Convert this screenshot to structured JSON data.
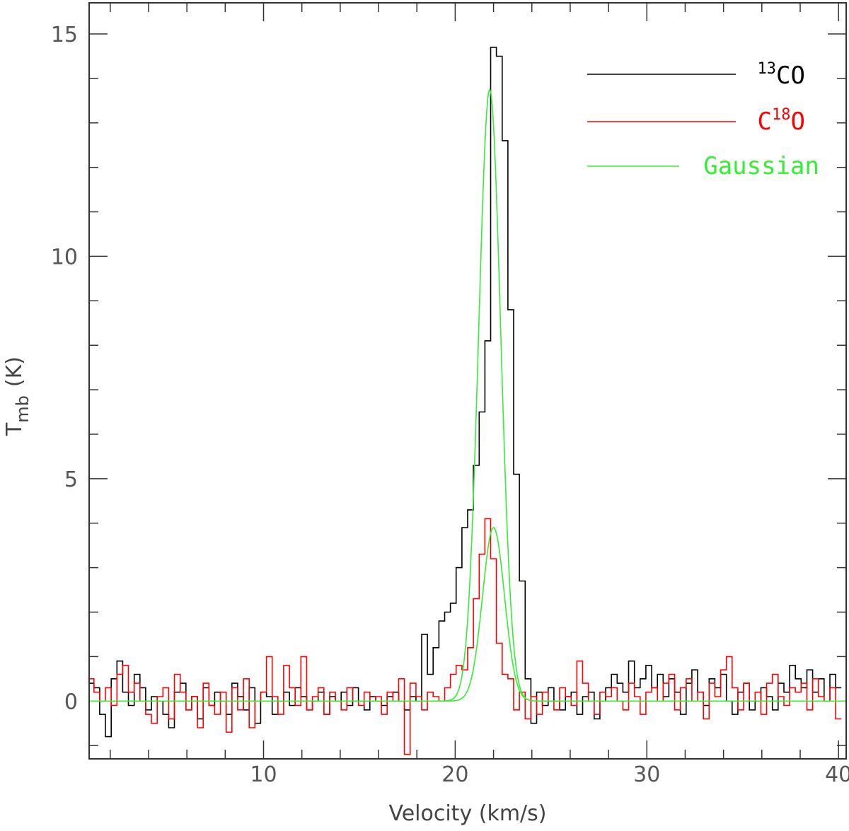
{
  "chart_data": {
    "type": "line",
    "xlabel": "Velocity (km/s)",
    "ylabel_main": "T",
    "ylabel_sub": "mb",
    "ylabel_unit": "(K)",
    "xlim": [
      0.9,
      40.4
    ],
    "ylim": [
      -1.3,
      15.7
    ],
    "xticks": [
      10,
      20,
      30,
      40
    ],
    "yticks": [
      0,
      5,
      10,
      15
    ],
    "legend_position": "top-right",
    "series": [
      {
        "name": "13CO",
        "legend_sup": "13",
        "legend_base": "CO",
        "color": "#000000",
        "kind": "step",
        "x": [
          1.0,
          1.3,
          1.6,
          1.9,
          2.2,
          2.5,
          2.8,
          3.1,
          3.4,
          3.7,
          4.0,
          4.3,
          4.6,
          4.9,
          5.2,
          5.5,
          5.8,
          6.1,
          6.4,
          6.7,
          7.0,
          7.3,
          7.6,
          7.9,
          8.2,
          8.5,
          8.8,
          9.1,
          9.4,
          9.7,
          10.0,
          10.3,
          10.6,
          10.9,
          11.2,
          11.5,
          11.8,
          12.1,
          12.4,
          12.7,
          13.0,
          13.3,
          13.6,
          13.9,
          14.2,
          14.5,
          14.8,
          15.1,
          15.4,
          15.7,
          16.0,
          16.3,
          16.6,
          16.9,
          17.2,
          17.5,
          17.8,
          18.1,
          18.4,
          18.7,
          19.0,
          19.3,
          19.6,
          19.9,
          20.2,
          20.5,
          20.8,
          21.1,
          21.4,
          21.7,
          22.0,
          22.3,
          22.6,
          22.9,
          23.2,
          23.5,
          23.8,
          24.1,
          24.4,
          24.7,
          25.0,
          25.3,
          25.6,
          25.9,
          26.2,
          26.5,
          26.8,
          27.1,
          27.4,
          27.7,
          28.0,
          28.3,
          28.6,
          28.9,
          29.2,
          29.5,
          29.8,
          30.1,
          30.4,
          30.7,
          31.0,
          31.3,
          31.6,
          31.9,
          32.2,
          32.5,
          32.8,
          33.1,
          33.4,
          33.7,
          34.0,
          34.3,
          34.6,
          34.9,
          35.2,
          35.5,
          35.8,
          36.1,
          36.4,
          36.7,
          37.0,
          37.3,
          37.6,
          37.9,
          38.2,
          38.5,
          38.8,
          39.1,
          39.4,
          39.7,
          40.0
        ],
        "y": [
          0.4,
          0.3,
          -0.3,
          -0.8,
          0.5,
          0.9,
          0.2,
          -0.1,
          0.6,
          0.3,
          -0.2,
          0.1,
          0.0,
          -0.3,
          -0.6,
          0.2,
          0.4,
          -0.2,
          0.1,
          -0.4,
          0.3,
          -0.1,
          0.2,
          0.0,
          -0.3,
          0.4,
          0.1,
          -0.2,
          0.3,
          -0.5,
          0.2,
          0.1,
          -0.3,
          0.0,
          0.2,
          -0.1,
          0.3,
          0.1,
          -0.2,
          0.0,
          0.2,
          -0.3,
          0.1,
          0.0,
          0.2,
          -0.1,
          0.3,
          0.0,
          -0.2,
          0.1,
          0.0,
          -0.1,
          0.1,
          0.2,
          0.0,
          -0.2,
          0.1,
          0.0,
          1.5,
          0.6,
          1.2,
          1.8,
          2.0,
          2.2,
          3.0,
          3.9,
          4.3,
          5.3,
          6.5,
          8.1,
          14.7,
          14.5,
          12.6,
          8.8,
          5.1,
          2.7,
          0.5,
          -0.5,
          0.2,
          -0.1,
          0.3,
          0.0,
          -0.2,
          0.1,
          0.2,
          -0.3,
          0.1,
          0.2,
          -0.4,
          0.0,
          0.3,
          0.6,
          0.4,
          0.2,
          0.9,
          0.3,
          0.5,
          0.8,
          0.3,
          0.6,
          0.1,
          0.5,
          0.2,
          -0.3,
          0.4,
          0.7,
          0.2,
          -0.1,
          0.5,
          0.3,
          0.6,
          0.0,
          -0.3,
          0.2,
          0.4,
          -0.2,
          0.0,
          0.3,
          0.1,
          -0.2,
          0.4,
          0.2,
          0.8,
          0.5,
          0.3,
          0.7,
          0.2,
          0.5,
          0.0,
          0.6,
          0.3
        ]
      },
      {
        "name": "C18O",
        "legend_sup": "18",
        "legend_base_pre": "C",
        "legend_base_post": "O",
        "color": "#ff0000",
        "kind": "step",
        "x": [
          1.0,
          1.3,
          1.6,
          1.9,
          2.2,
          2.5,
          2.8,
          3.1,
          3.4,
          3.7,
          4.0,
          4.3,
          4.6,
          4.9,
          5.2,
          5.5,
          5.8,
          6.1,
          6.4,
          6.7,
          7.0,
          7.3,
          7.6,
          7.9,
          8.2,
          8.5,
          8.8,
          9.1,
          9.4,
          9.7,
          10.0,
          10.3,
          10.6,
          10.9,
          11.2,
          11.5,
          11.8,
          12.1,
          12.4,
          12.7,
          13.0,
          13.3,
          13.6,
          13.9,
          14.2,
          14.5,
          14.8,
          15.1,
          15.4,
          15.7,
          16.0,
          16.3,
          16.6,
          16.9,
          17.2,
          17.5,
          17.8,
          18.1,
          18.4,
          18.7,
          19.0,
          19.3,
          19.6,
          19.9,
          20.2,
          20.5,
          20.8,
          21.1,
          21.4,
          21.7,
          22.0,
          22.3,
          22.6,
          22.9,
          23.2,
          23.5,
          23.8,
          24.1,
          24.4,
          24.7,
          25.0,
          25.3,
          25.6,
          25.9,
          26.2,
          26.5,
          26.8,
          27.1,
          27.4,
          27.7,
          28.0,
          28.3,
          28.6,
          28.9,
          29.2,
          29.5,
          29.8,
          30.1,
          30.4,
          30.7,
          31.0,
          31.3,
          31.6,
          31.9,
          32.2,
          32.5,
          32.8,
          33.1,
          33.4,
          33.7,
          34.0,
          34.3,
          34.6,
          34.9,
          35.2,
          35.5,
          35.8,
          36.1,
          36.4,
          36.7,
          37.0,
          37.3,
          37.6,
          37.9,
          38.2,
          38.5,
          38.8,
          39.1,
          39.4,
          39.7,
          40.0
        ],
        "y": [
          0.5,
          0.2,
          0.0,
          0.3,
          -0.1,
          0.6,
          0.8,
          0.2,
          0.4,
          0.0,
          -0.3,
          -0.5,
          0.1,
          0.3,
          -0.4,
          0.6,
          0.2,
          -0.2,
          0.1,
          -0.6,
          0.4,
          -0.1,
          -0.3,
          0.2,
          -0.7,
          0.3,
          -0.2,
          0.5,
          -0.6,
          0.0,
          0.2,
          1.0,
          0.1,
          -0.3,
          0.8,
          0.3,
          -0.1,
          1.0,
          -0.2,
          0.1,
          0.3,
          -0.3,
          0.2,
          0.0,
          -0.2,
          0.3,
          0.0,
          -0.1,
          0.2,
          0.0,
          0.1,
          -0.3,
          0.2,
          0.0,
          0.5,
          -1.2,
          0.4,
          0.1,
          -0.2,
          0.2,
          0.1,
          0.0,
          0.3,
          0.6,
          0.8,
          0.7,
          1.2,
          2.3,
          3.3,
          4.1,
          3.2,
          1.3,
          0.6,
          0.5,
          -0.2,
          0.2,
          -0.4,
          0.1,
          -0.3,
          0.2,
          0.0,
          -0.2,
          0.3,
          0.1,
          -0.1,
          0.9,
          0.4,
          0.0,
          -0.3,
          0.2,
          0.1,
          0.3,
          0.0,
          -0.2,
          0.4,
          0.1,
          -0.3,
          0.2,
          0.3,
          0.0,
          0.4,
          0.6,
          -0.2,
          0.3,
          0.5,
          0.0,
          0.2,
          -0.4,
          0.4,
          0.1,
          0.7,
          1.0,
          0.3,
          -0.2,
          0.4,
          0.0,
          0.2,
          -0.3,
          0.4,
          0.6,
          0.1,
          -0.1,
          0.3,
          0.2,
          0.4,
          -0.2,
          0.5,
          0.1,
          0.0,
          0.3,
          -0.4
        ]
      },
      {
        "name": "Gaussian",
        "color": "#33ee33",
        "kind": "gaussian",
        "components": [
          {
            "amplitude": 13.75,
            "center": 21.8,
            "fwhm": 1.35
          },
          {
            "amplitude": 3.9,
            "center": 22.0,
            "fwhm": 1.35
          }
        ]
      }
    ]
  }
}
